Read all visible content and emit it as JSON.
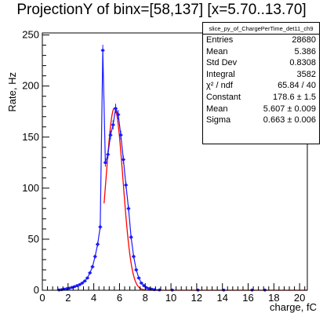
{
  "chart_data": {
    "type": "histogram",
    "title": "ProjectionY of binx=[58,137] [x=5.70..13.70]",
    "xlabel": "charge, fC",
    "ylabel": "Rate, Hz",
    "xlim": [
      0,
      20.6
    ],
    "ylim": [
      0,
      252
    ],
    "x_ticks": [
      0,
      2,
      4,
      6,
      8,
      10,
      12,
      14,
      16,
      18,
      20
    ],
    "y_ticks": [
      0,
      50,
      100,
      150,
      200,
      250
    ],
    "grid": false,
    "data_color": "#1a1aff",
    "fit_color": "#ff0000",
    "data_points": [
      {
        "x": 1.3,
        "y": 0.3
      },
      {
        "x": 1.5,
        "y": 0.6
      },
      {
        "x": 1.7,
        "y": 1.0
      },
      {
        "x": 1.9,
        "y": 1.5
      },
      {
        "x": 2.1,
        "y": 2.0
      },
      {
        "x": 2.3,
        "y": 2.8
      },
      {
        "x": 2.5,
        "y": 3.5
      },
      {
        "x": 2.7,
        "y": 4.5
      },
      {
        "x": 2.9,
        "y": 5.5
      },
      {
        "x": 3.1,
        "y": 7.0
      },
      {
        "x": 3.3,
        "y": 9.0
      },
      {
        "x": 3.5,
        "y": 12.0
      },
      {
        "x": 3.7,
        "y": 17.0
      },
      {
        "x": 3.9,
        "y": 23.0
      },
      {
        "x": 4.1,
        "y": 33.0
      },
      {
        "x": 4.3,
        "y": 45.0
      },
      {
        "x": 4.5,
        "y": 62.0
      },
      {
        "x": 4.7,
        "y": 235.0
      },
      {
        "x": 4.9,
        "y": 125.0
      },
      {
        "x": 5.1,
        "y": 133.0
      },
      {
        "x": 5.3,
        "y": 152.0
      },
      {
        "x": 5.5,
        "y": 162.0
      },
      {
        "x": 5.7,
        "y": 178.0
      },
      {
        "x": 5.9,
        "y": 172.0
      },
      {
        "x": 6.1,
        "y": 152.0
      },
      {
        "x": 6.3,
        "y": 128.0
      },
      {
        "x": 6.5,
        "y": 103.0
      },
      {
        "x": 6.7,
        "y": 80.0
      },
      {
        "x": 6.9,
        "y": 52.0
      },
      {
        "x": 7.1,
        "y": 33.0
      },
      {
        "x": 7.3,
        "y": 20.0
      },
      {
        "x": 7.5,
        "y": 12.0
      },
      {
        "x": 7.7,
        "y": 7.0
      },
      {
        "x": 7.9,
        "y": 4.5
      },
      {
        "x": 8.1,
        "y": 2.5
      },
      {
        "x": 8.3,
        "y": 1.5
      },
      {
        "x": 8.5,
        "y": 1.0
      },
      {
        "x": 8.7,
        "y": 0.6
      },
      {
        "x": 9.1,
        "y": 0.3
      },
      {
        "x": 10.1,
        "y": 0.2
      },
      {
        "x": 12.1,
        "y": 0.2
      },
      {
        "x": 14.1,
        "y": 0.2
      },
      {
        "x": 16.3,
        "y": 0.2
      },
      {
        "x": 17.3,
        "y": 0.2
      }
    ],
    "fit": {
      "constant": 178.6,
      "mean": 5.607,
      "sigma": 0.663,
      "xmin": 4.8,
      "xmax": 20.6
    }
  },
  "stats": {
    "name": "slice_py_of_ChargePerTime_det11_ch9",
    "rows": [
      {
        "label": "Entries",
        "value": "28680"
      },
      {
        "label": "Mean",
        "value": "5.386"
      },
      {
        "label": "Std Dev",
        "value": "0.8308"
      },
      {
        "label": "Integral",
        "value": "3582"
      },
      {
        "label": "χ² / ndf",
        "value": "65.84 / 40"
      },
      {
        "label": "Constant",
        "value": "178.6 ± 1.5"
      },
      {
        "label": "Mean",
        "value": "5.607 ± 0.009"
      },
      {
        "label": "Sigma",
        "value": "0.663 ± 0.006"
      }
    ]
  }
}
